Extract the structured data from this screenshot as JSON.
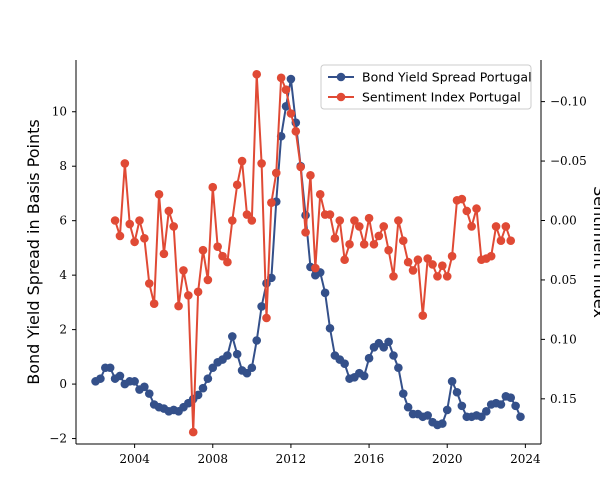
{
  "chart_data": {
    "type": "line",
    "xlim": [
      2001.0,
      2024.8
    ],
    "x_ticks": [
      2004,
      2008,
      2012,
      2016,
      2020,
      2024
    ],
    "left_axis": {
      "label": "Bond Yield Spread in Basis Points",
      "ylim": [
        -2.2,
        11.9
      ],
      "ticks": [
        -2,
        0,
        2,
        4,
        6,
        8,
        10
      ]
    },
    "right_axis": {
      "label": "Sentiment Index",
      "inverted": true,
      "ylim": [
        0.188,
        -0.135
      ],
      "ticks": [
        -0.1,
        -0.05,
        0.0,
        0.05,
        0.1,
        0.15
      ],
      "tick_labels": [
        "−0.10",
        "−0.05",
        "0.00",
        "0.05",
        "0.10",
        "0.15"
      ]
    },
    "legend_position": "top-right",
    "grid": false,
    "series": [
      {
        "name": "Bond Yield Spread Portugal",
        "axis": "left",
        "color": "#34508a",
        "x": [
          2002.0,
          2002.25,
          2002.5,
          2002.75,
          2003.0,
          2003.25,
          2003.5,
          2003.75,
          2004.0,
          2004.25,
          2004.5,
          2004.75,
          2005.0,
          2005.25,
          2005.5,
          2005.75,
          2006.0,
          2006.25,
          2006.5,
          2006.75,
          2007.0,
          2007.25,
          2007.5,
          2007.75,
          2008.0,
          2008.25,
          2008.5,
          2008.75,
          2009.0,
          2009.25,
          2009.5,
          2009.75,
          2010.0,
          2010.25,
          2010.5,
          2010.75,
          2011.0,
          2011.25,
          2011.5,
          2011.75,
          2012.0,
          2012.25,
          2012.5,
          2012.75,
          2013.0,
          2013.25,
          2013.5,
          2013.75,
          2014.0,
          2014.25,
          2014.5,
          2014.75,
          2015.0,
          2015.25,
          2015.5,
          2015.75,
          2016.0,
          2016.25,
          2016.5,
          2016.75,
          2017.0,
          2017.25,
          2017.5,
          2017.75,
          2018.0,
          2018.25,
          2018.5,
          2018.75,
          2019.0,
          2019.25,
          2019.5,
          2019.75,
          2020.0,
          2020.25,
          2020.5,
          2020.75,
          2021.0,
          2021.25,
          2021.5,
          2021.75,
          2022.0,
          2022.25,
          2022.5,
          2022.75,
          2023.0,
          2023.25,
          2023.5,
          2023.75
        ],
        "values": [
          0.1,
          0.2,
          0.6,
          0.6,
          0.2,
          0.3,
          0.0,
          0.1,
          0.1,
          -0.2,
          -0.1,
          -0.35,
          -0.75,
          -0.85,
          -0.9,
          -1.0,
          -0.95,
          -1.0,
          -0.85,
          -0.7,
          -0.55,
          -0.4,
          -0.15,
          0.2,
          0.6,
          0.8,
          0.9,
          1.05,
          1.75,
          1.1,
          0.5,
          0.4,
          0.6,
          1.6,
          2.85,
          3.7,
          3.9,
          6.7,
          9.1,
          10.2,
          11.2,
          9.6,
          8.0,
          6.2,
          4.3,
          4.0,
          4.1,
          3.35,
          2.05,
          1.05,
          0.9,
          0.75,
          0.2,
          0.25,
          0.4,
          0.3,
          0.95,
          1.35,
          1.5,
          1.35,
          1.55,
          1.05,
          0.6,
          -0.35,
          -0.85,
          -1.1,
          -1.1,
          -1.2,
          -1.15,
          -1.4,
          -1.5,
          -1.45,
          -0.95,
          0.1,
          -0.3,
          -0.8,
          -1.2,
          -1.2,
          -1.15,
          -1.2,
          -1.0,
          -0.75,
          -0.7,
          -0.75,
          -0.45,
          -0.5,
          -0.8,
          -1.2
        ]
      },
      {
        "name": "Sentiment Index Portugal",
        "axis": "right",
        "color": "#e04a35",
        "x": [
          2003.0,
          2003.25,
          2003.5,
          2003.75,
          2004.0,
          2004.25,
          2004.5,
          2004.75,
          2005.0,
          2005.25,
          2005.5,
          2005.75,
          2006.0,
          2006.25,
          2006.5,
          2006.75,
          2007.0,
          2007.25,
          2007.5,
          2007.75,
          2008.0,
          2008.25,
          2008.5,
          2008.75,
          2009.0,
          2009.25,
          2009.5,
          2009.75,
          2010.0,
          2010.25,
          2010.5,
          2010.75,
          2011.0,
          2011.25,
          2011.5,
          2011.75,
          2012.0,
          2012.25,
          2012.5,
          2012.75,
          2013.0,
          2013.25,
          2013.5,
          2013.75,
          2014.0,
          2014.25,
          2014.5,
          2014.75,
          2015.0,
          2015.25,
          2015.5,
          2015.75,
          2016.0,
          2016.25,
          2016.5,
          2016.75,
          2017.0,
          2017.25,
          2017.5,
          2017.75,
          2018.0,
          2018.25,
          2018.5,
          2018.75,
          2019.0,
          2019.25,
          2019.5,
          2019.75,
          2020.0,
          2020.25,
          2020.5,
          2020.75,
          2021.0,
          2021.25,
          2021.5,
          2021.75,
          2022.0,
          2022.25,
          2022.5,
          2022.75,
          2023.0,
          2023.25
        ],
        "values": [
          0.0,
          0.013,
          -0.048,
          0.003,
          0.018,
          0.0,
          0.015,
          0.053,
          0.07,
          -0.022,
          0.028,
          -0.008,
          0.005,
          0.072,
          0.042,
          0.063,
          0.178,
          0.06,
          0.025,
          0.05,
          -0.028,
          0.022,
          0.03,
          0.035,
          0.0,
          -0.03,
          -0.05,
          -0.005,
          0.0,
          -0.123,
          -0.048,
          0.082,
          -0.015,
          -0.04,
          -0.12,
          -0.11,
          -0.09,
          -0.075,
          -0.045,
          0.01,
          -0.038,
          0.04,
          -0.022,
          -0.005,
          -0.005,
          0.015,
          0.0,
          0.033,
          0.02,
          0.0,
          0.005,
          0.02,
          -0.002,
          0.02,
          0.013,
          0.005,
          0.025,
          0.047,
          0.0,
          0.017,
          0.035,
          0.042,
          0.033,
          0.08,
          0.032,
          0.037,
          0.047,
          0.038,
          0.047,
          0.03,
          -0.017,
          -0.018,
          -0.008,
          0.005,
          -0.01,
          0.033,
          0.032,
          0.03,
          0.005,
          0.017,
          0.005,
          0.017
        ]
      }
    ]
  }
}
